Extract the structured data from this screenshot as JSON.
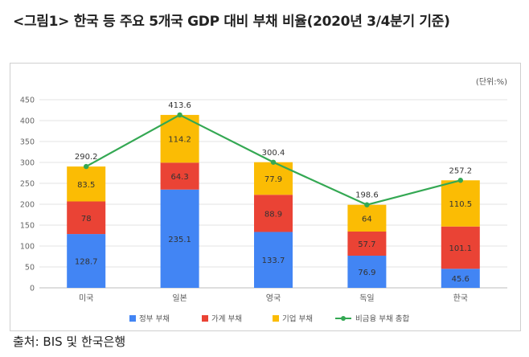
{
  "title": "<그림1> 한국 등 주요 5개국 GDP 대비 부채 비율(2020년 3/4분기 기준)",
  "source": "출처: BIS 및 한국은행",
  "chart_data": {
    "type": "bar",
    "stacked": true,
    "unit_label": "(단위:%)",
    "categories": [
      "미국",
      "일본",
      "영국",
      "독일",
      "한국"
    ],
    "ylim": [
      0,
      450
    ],
    "yticks": [
      0,
      50,
      100,
      150,
      200,
      250,
      300,
      350,
      400,
      450
    ],
    "grid": true,
    "legend_position": "bottom",
    "series": [
      {
        "name": "정부 부채",
        "color": "#4285f4",
        "values": [
          128.7,
          235.1,
          133.7,
          76.9,
          45.6
        ]
      },
      {
        "name": "가계 부채",
        "color": "#ea4335",
        "values": [
          78,
          64.3,
          88.9,
          57.7,
          101.1
        ]
      },
      {
        "name": "기업 부채",
        "color": "#fbbc04",
        "values": [
          83.5,
          114.2,
          77.9,
          64,
          110.5
        ]
      }
    ],
    "line_series": {
      "name": "비금융 부채 총합",
      "color": "#34a853",
      "values": [
        290.2,
        413.6,
        300.4,
        198.6,
        257.2
      ]
    },
    "data_labels": {
      "series": [
        [
          "128.7",
          "235.1",
          "133.7",
          "76.9",
          "45.6"
        ],
        [
          "78",
          "64.3",
          "88.9",
          "57.7",
          "101.1"
        ],
        [
          "83.5",
          "114.2",
          "77.9",
          "64",
          "110.5"
        ]
      ],
      "totals": [
        "290.2",
        "413.6",
        "300.4",
        "198.6",
        "257.2"
      ]
    }
  }
}
